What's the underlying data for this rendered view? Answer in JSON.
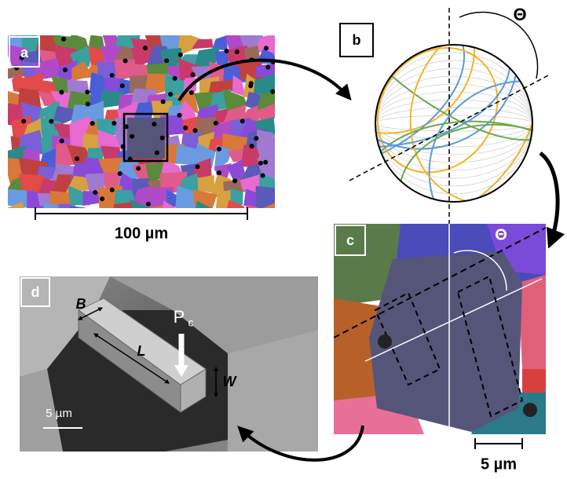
{
  "panels": [
    {
      "label": "a",
      "scale_bar": "100 µm"
    },
    {
      "label": "b",
      "angle": "Θ"
    },
    {
      "label": "c",
      "angle": "Θ",
      "scale_bar": "5 µm"
    },
    {
      "label": "d",
      "dimensions": [
        "B",
        "L",
        "W"
      ],
      "load": {
        "symbol": "P",
        "subscript": "c"
      },
      "scale_bar": "5 µm"
    }
  ]
}
